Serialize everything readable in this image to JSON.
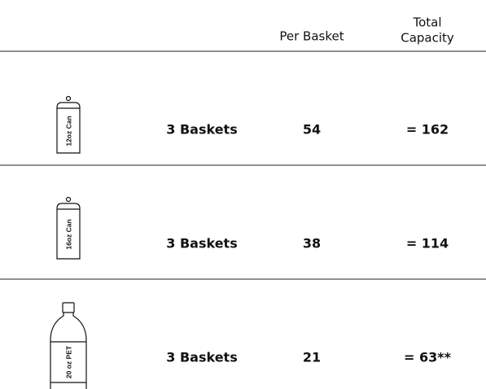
{
  "table": {
    "header": [
      "",
      "Per Basket",
      [
        "Total",
        "Capacity"
      ]
    ],
    "rows": [
      [
        "12oz Can",
        "3 Baskets",
        54,
        "= 162"
      ],
      [
        "16oz Can",
        "3 Baskets",
        38,
        "= 114"
      ],
      [
        "20 oz PET",
        "3 Baskets",
        21,
        "= 63**"
      ]
    ]
  }
}
